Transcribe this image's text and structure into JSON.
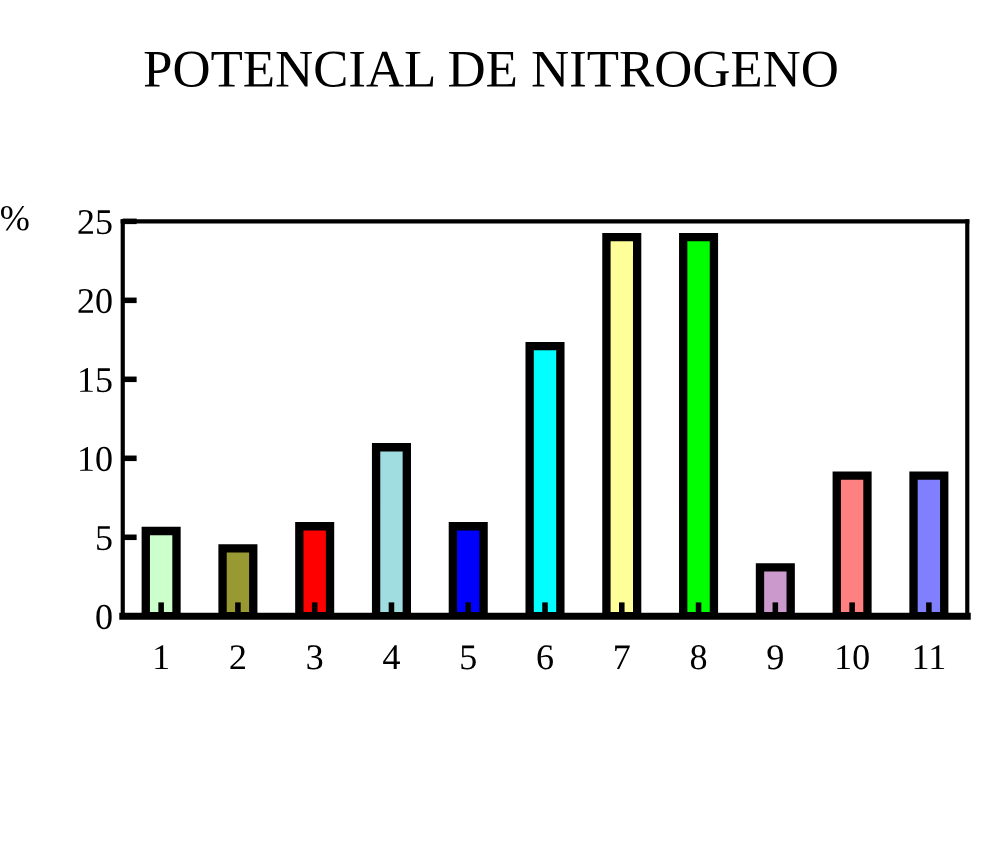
{
  "chart_data": {
    "type": "bar",
    "title": "POTENCIAL DE NITROGENO",
    "ylabel": "%",
    "categories": [
      "1",
      "2",
      "3",
      "4",
      "5",
      "6",
      "7",
      "8",
      "9",
      "10",
      "11"
    ],
    "values": [
      5.4,
      4.3,
      5.7,
      10.7,
      5.7,
      17.1,
      24,
      24,
      3.1,
      8.9,
      8.9
    ],
    "colors": [
      "#ccffcc",
      "#999933",
      "#ff0000",
      "#a0dde0",
      "#0000ff",
      "#00ffff",
      "#ffff99",
      "#00ff00",
      "#cc99cc",
      "#ff8080",
      "#8080ff"
    ],
    "ylim": [
      0,
      25
    ],
    "yticks": [
      0,
      5,
      10,
      15,
      20,
      25
    ],
    "grid": false,
    "legend": false
  }
}
